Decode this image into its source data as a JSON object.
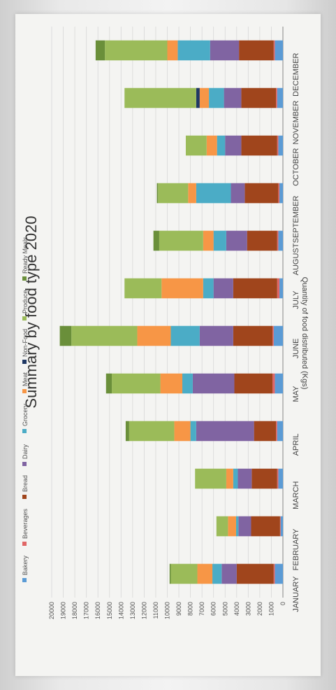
{
  "chart_data": {
    "type": "bar",
    "stacked": true,
    "orientation": "vertical",
    "title": "Summary by food type 2020",
    "ylabel": "Quantity of food distributed (Kgs)",
    "xlabel": "",
    "ylim": [
      0,
      20000
    ],
    "yticks": [
      "0",
      "1000",
      "2000",
      "3000",
      "4000",
      "5000",
      "6000",
      "7000",
      "8000",
      "9000",
      "10000",
      "11000",
      "12000",
      "13000",
      "14000",
      "15000",
      "16000",
      "17000",
      "18000",
      "19000",
      "20000"
    ],
    "grid": true,
    "legend_position": "bottom",
    "categories": [
      "JANUARY",
      "FEBRUARY",
      "MARCH",
      "APRIL",
      "MAY",
      "JUNE",
      "JULY",
      "AUGUST",
      "SEPTEMBER",
      "OCTOBER",
      "NOVEMBER",
      "DECEMBER"
    ],
    "series": [
      {
        "name": "Bakery",
        "color": "#5b9bd5",
        "values": [
          700,
          200,
          400,
          500,
          700,
          800,
          300,
          400,
          300,
          400,
          500,
          700
        ]
      },
      {
        "name": "Beverages",
        "color": "#e06666",
        "values": [
          100,
          50,
          100,
          100,
          200,
          100,
          200,
          100,
          100,
          100,
          100,
          100
        ]
      },
      {
        "name": "Bread",
        "color": "#a0451c",
        "values": [
          3200,
          2500,
          2200,
          1900,
          3300,
          3400,
          3800,
          2600,
          2900,
          3100,
          3000,
          3000
        ]
      },
      {
        "name": "Dairy",
        "color": "#8064a2",
        "values": [
          1300,
          1100,
          1200,
          5000,
          3600,
          2900,
          1700,
          1800,
          1200,
          1400,
          1500,
          2500
        ]
      },
      {
        "name": "Grocery",
        "color": "#4bacc6",
        "values": [
          800,
          200,
          400,
          500,
          900,
          2500,
          900,
          1100,
          3000,
          700,
          1300,
          2800
        ]
      },
      {
        "name": "Meat",
        "color": "#f79646",
        "values": [
          1300,
          700,
          600,
          1400,
          1900,
          2900,
          3600,
          900,
          700,
          900,
          800,
          900
        ]
      },
      {
        "name": "Non-Food",
        "color": "#1f3864",
        "values": [
          0,
          0,
          0,
          0,
          0,
          0,
          0,
          0,
          0,
          0,
          300,
          0
        ]
      },
      {
        "name": "Produce",
        "color": "#9bbb59",
        "values": [
          2300,
          1000,
          2700,
          3900,
          4200,
          5700,
          3200,
          3800,
          2600,
          1800,
          6200,
          5400
        ]
      },
      {
        "name": "Ready Meals",
        "color": "#6a8f3a",
        "values": [
          100,
          0,
          0,
          300,
          500,
          1000,
          0,
          500,
          100,
          0,
          0,
          800
        ]
      }
    ]
  }
}
